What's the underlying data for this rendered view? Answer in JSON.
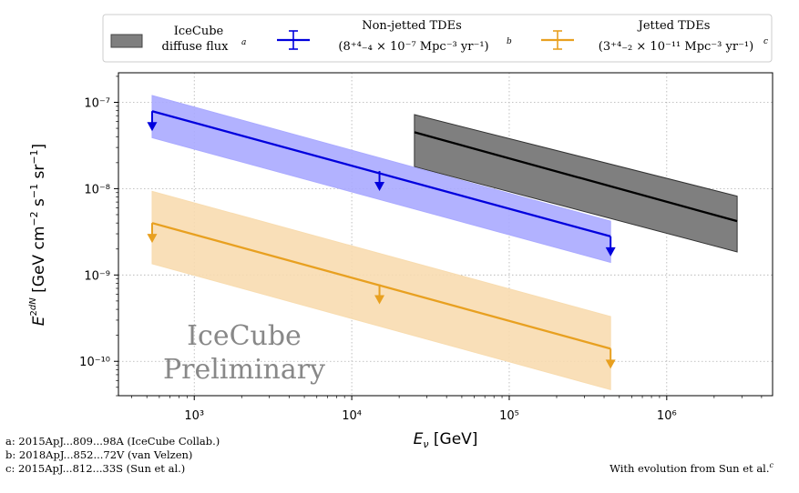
{
  "chart_data": {
    "type": "line",
    "xlabel": "E_ν [GeV]",
    "ylabel": "E² dN/dE [GeV cm⁻² s⁻¹ sr⁻¹]",
    "x_scale": "log",
    "y_scale": "log",
    "xlim": [
      330,
      4700000
    ],
    "ylim": [
      4e-11,
      2.2e-07
    ],
    "x_ticks": [
      {
        "value": 1000,
        "label": "10³"
      },
      {
        "value": 10000,
        "label": "10⁴"
      },
      {
        "value": 100000,
        "label": "10⁵"
      },
      {
        "value": 1000000,
        "label": "10⁶"
      }
    ],
    "y_ticks": [
      {
        "value": 1e-10,
        "label": "10⁻¹⁰"
      },
      {
        "value": 1e-09,
        "label": "10⁻⁹"
      },
      {
        "value": 1e-08,
        "label": "10⁻⁸"
      },
      {
        "value": 1e-07,
        "label": "10⁻⁷"
      }
    ],
    "grid": true,
    "legend_position": "top",
    "watermark": [
      "IceCube",
      "Preliminary"
    ],
    "series": [
      {
        "name": "IceCube diffuse flux",
        "label_lines": [
          "IceCube",
          "diffuse flux"
        ],
        "label_superscript": "a",
        "kind": "band",
        "color": "#7f7f7f",
        "x": [
          25000,
          2800000
        ],
        "y": [
          4.5e-08,
          4.2e-09
        ],
        "band_upper": [
          7.2e-08,
          8.2e-09
        ],
        "band_lower": [
          1.8e-08,
          1.85e-09
        ]
      },
      {
        "name": "Non-jetted TDEs",
        "label_lines": [
          "Non-jetted TDEs",
          "(8⁺⁴₋₄ × 10⁻⁷ Mpc⁻³ yr⁻¹)"
        ],
        "label_superscript": "b",
        "kind": "upper_limit",
        "color": "#0000dd",
        "fill": "#aaaaff",
        "x": [
          540,
          440000
        ],
        "y": [
          7.9e-08,
          2.8e-09
        ],
        "band_upper": [
          1.2e-07,
          4.2e-09
        ],
        "band_lower": [
          3.9e-08,
          1.4e-09
        ],
        "limit_points": [
          {
            "x": 540,
            "y": 7.9e-08
          },
          {
            "x": 15000,
            "y": 1.6e-08
          },
          {
            "x": 440000,
            "y": 2.8e-09
          }
        ]
      },
      {
        "name": "Jetted TDEs",
        "label_lines": [
          "Jetted TDEs",
          "(3⁺⁴₋₂ × 10⁻¹¹ Mpc⁻³ yr⁻¹)"
        ],
        "label_superscript": "c",
        "kind": "upper_limit",
        "color": "#e8a020",
        "fill": "#f8dcb0",
        "x": [
          540,
          440000
        ],
        "y": [
          4e-09,
          1.4e-10
        ],
        "band_upper": [
          9.3e-09,
          3.3e-10
        ],
        "band_lower": [
          1.35e-09,
          4.7e-11
        ],
        "limit_points": [
          {
            "x": 540,
            "y": 4e-09
          },
          {
            "x": 15000,
            "y": 7.8e-10
          },
          {
            "x": 440000,
            "y": 1.4e-10
          }
        ]
      }
    ]
  },
  "footnotes": {
    "a": "a: 2015ApJ...809...98A (IceCube Collab.)",
    "b": "b: 2018ApJ...852...72V (van Velzen)",
    "c": "c: 2015ApJ...812...33S (Sun et al.)"
  },
  "evolution_note": "With evolution from Sun et al.",
  "evolution_note_superscript": "c"
}
